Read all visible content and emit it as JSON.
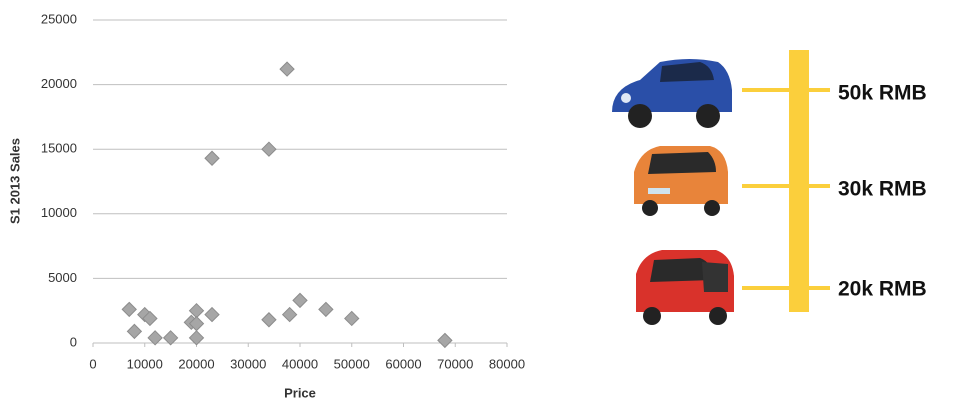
{
  "chart_data": {
    "type": "scatter",
    "xlabel": "Price",
    "ylabel": "S1 2013 Sales",
    "x": [
      7000,
      8000,
      10000,
      11000,
      12000,
      15000,
      19000,
      20000,
      20000,
      20000,
      23000,
      23000,
      34000,
      34000,
      37500,
      38000,
      40000,
      45000,
      50000,
      68000
    ],
    "values": [
      2600,
      900,
      2200,
      1900,
      400,
      400,
      1600,
      400,
      2500,
      1500,
      2200,
      14300,
      15000,
      1800,
      21200,
      2200,
      3300,
      2600,
      1900,
      200
    ],
    "color": "#a6a6a6",
    "xlim": [
      0,
      80000
    ],
    "xticks": [
      0,
      10000,
      20000,
      30000,
      40000,
      50000,
      60000,
      70000,
      80000
    ],
    "ylim": [
      0,
      25000
    ],
    "yticks": [
      0,
      5000,
      10000,
      15000,
      20000,
      25000
    ],
    "grid": true
  },
  "price_scale": {
    "labels": [
      "50k RMB",
      "30k RMB",
      "20k RMB"
    ]
  }
}
